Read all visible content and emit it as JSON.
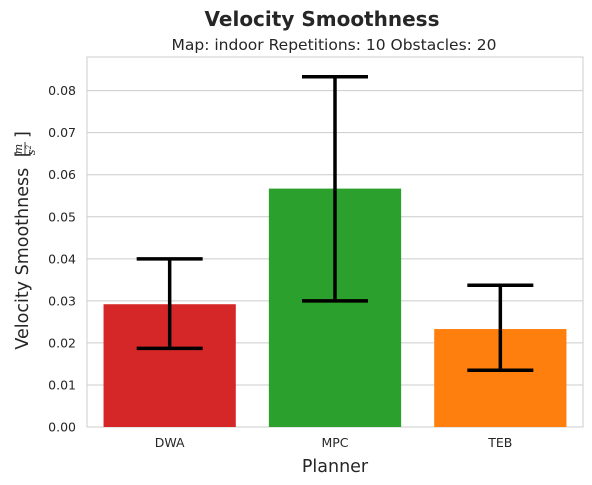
{
  "chart_data": {
    "type": "bar",
    "title": "Velocity Smoothness",
    "subtitle": "Map: indoor Repetitions: 10 Obstacles: 20",
    "xlabel": "Planner",
    "ylabel": "Velocity Smoothness",
    "ylabel_unit": {
      "num": "m",
      "den": "s",
      "den_power": "2"
    },
    "categories": [
      "DWA",
      "MPC",
      "TEB"
    ],
    "values": [
      0.0292,
      0.0567,
      0.0233
    ],
    "error_low": [
      0.0187,
      0.03,
      0.0135
    ],
    "error_high": [
      0.04,
      0.0833,
      0.0337
    ],
    "colors": [
      "#d62728",
      "#2ca02c",
      "#ff7f0e"
    ],
    "error_color": "#000000",
    "ylim": [
      0,
      0.088
    ],
    "yticks": [
      "0.00",
      "0.01",
      "0.02",
      "0.03",
      "0.04",
      "0.05",
      "0.06",
      "0.07",
      "0.08"
    ],
    "ytick_values": [
      0,
      0.01,
      0.02,
      0.03,
      0.04,
      0.05,
      0.06,
      0.07,
      0.08
    ],
    "grid": "horizontal",
    "background": "#ffffff",
    "grid_color": "#cccccc"
  }
}
